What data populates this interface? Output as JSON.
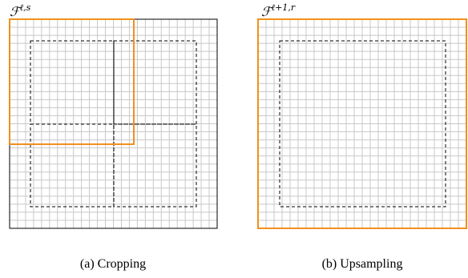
{
  "panels": [
    {
      "id": "cropping",
      "feature_label": {
        "base": "ℱ",
        "superscript": "ℓ,s"
      },
      "caption": "(a) Cropping",
      "grid": {
        "cells": 26,
        "line_color": "#c8c8c8",
        "border_color": "#000000"
      },
      "highlight_color": "#f0901e",
      "dashed_regions": 4,
      "dashed_color": "#000000"
    },
    {
      "id": "upsampling",
      "feature_label": {
        "base": "ℱ",
        "superscript": "ℓ+1,r"
      },
      "caption": "(b) Upsampling",
      "grid": {
        "cells": 26,
        "line_color": "#c8c8c8",
        "border_color": "#f0901e"
      },
      "highlight_color": "#f0901e",
      "dashed_regions": 1,
      "dashed_color": "#000000"
    }
  ]
}
